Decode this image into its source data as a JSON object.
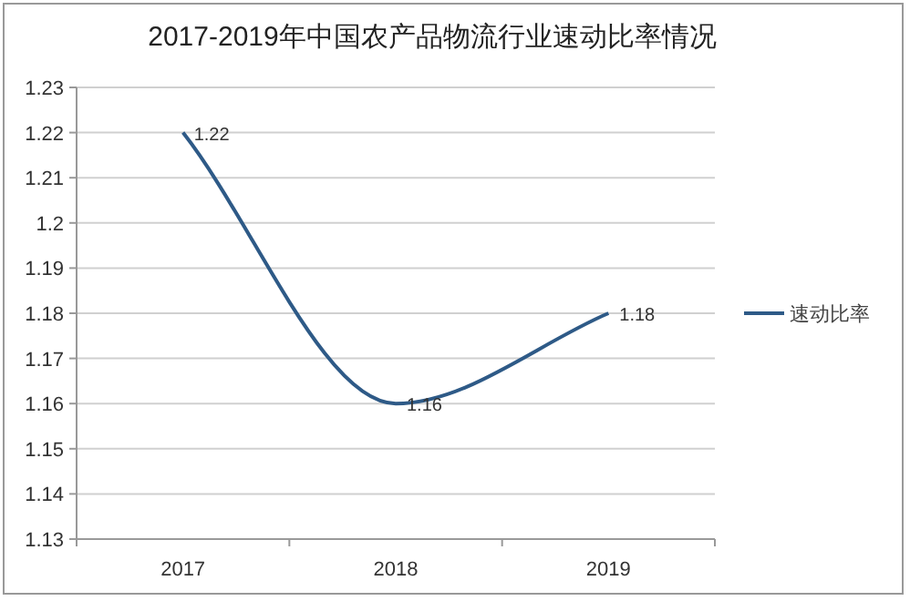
{
  "chart_data": {
    "type": "line",
    "title": "2017-2019年中国农产品物流行业速动比率情况",
    "categories": [
      "2017",
      "2018",
      "2019"
    ],
    "series": [
      {
        "name": "速动比率",
        "color": "#2e5a87",
        "values": [
          1.22,
          1.16,
          1.18
        ]
      }
    ],
    "ylim": [
      1.13,
      1.23
    ],
    "yticks": [
      1.13,
      1.14,
      1.15,
      1.16,
      1.17,
      1.18,
      1.19,
      1.2,
      1.21,
      1.22,
      1.23
    ],
    "grid": "y",
    "legend": "right",
    "data_labels": true,
    "marker": "none",
    "line_style": "solid"
  }
}
